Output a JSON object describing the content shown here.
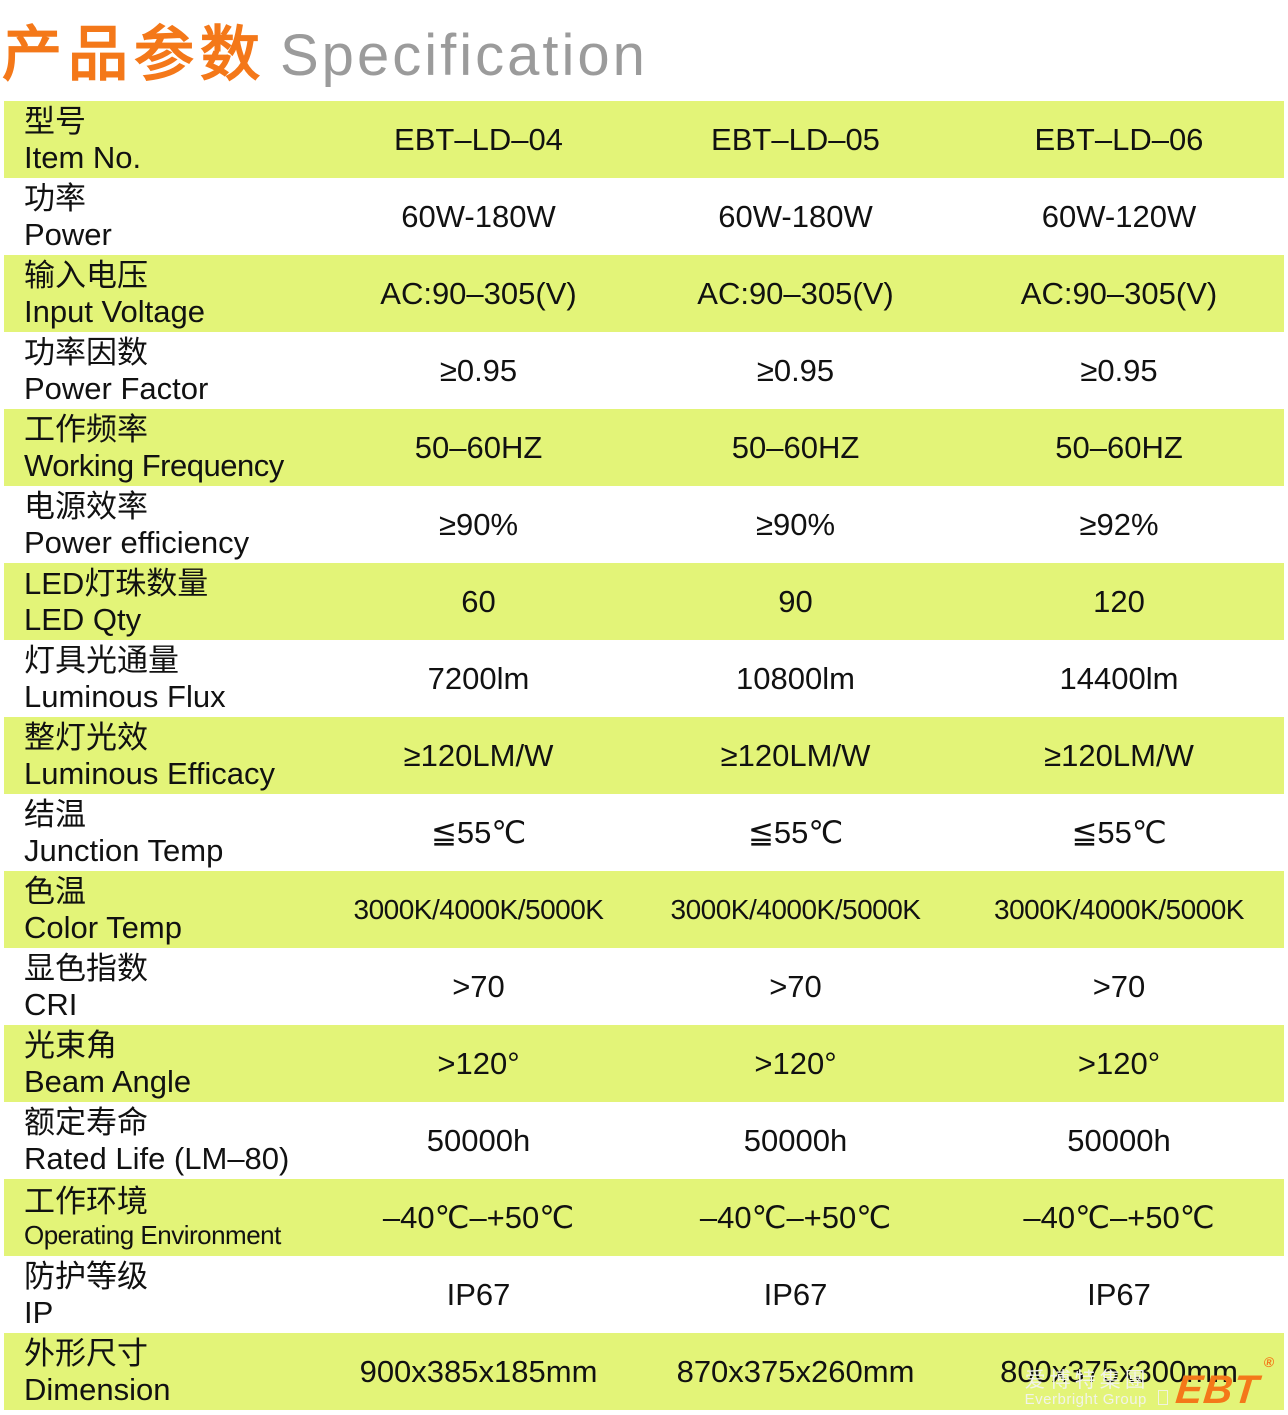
{
  "title": {
    "zh": "产品参数",
    "en": "Specification"
  },
  "table": {
    "rows": [
      {
        "label_zh": "型号",
        "label_en": "Item No.",
        "values": [
          "EBT–LD–04",
          "EBT–LD–05",
          "EBT–LD–06"
        ]
      },
      {
        "label_zh": "功率",
        "label_en": "Power",
        "values": [
          "60W-180W",
          "60W-180W",
          "60W-120W"
        ]
      },
      {
        "label_zh": "输入电压",
        "label_en": "Input Voltage",
        "values": [
          "AC:90–305(V)",
          "AC:90–305(V)",
          "AC:90–305(V)"
        ]
      },
      {
        "label_zh": "功率因数",
        "label_en": "Power Factor",
        "values": [
          "≥0.95",
          "≥0.95",
          "≥0.95"
        ]
      },
      {
        "label_zh": "工作频率",
        "label_en": "Working Frequency",
        "values": [
          "50–60HZ",
          "50–60HZ",
          "50–60HZ"
        ]
      },
      {
        "label_zh": "电源效率",
        "label_en": "Power efficiency",
        "values": [
          "≥90%",
          "≥90%",
          "≥92%"
        ]
      },
      {
        "label_zh": "LED灯珠数量",
        "label_en": "LED Qty",
        "values": [
          "60",
          "90",
          "120"
        ]
      },
      {
        "label_zh": "灯具光通量",
        "label_en": "Luminous Flux",
        "values": [
          "7200lm",
          "10800lm",
          "14400lm"
        ]
      },
      {
        "label_zh": "整灯光效",
        "label_en": "Luminous Efficacy",
        "values": [
          "≥120LM/W",
          "≥120LM/W",
          "≥120LM/W"
        ]
      },
      {
        "label_zh": "结温",
        "label_en": "Junction Temp",
        "values": [
          "≦55℃",
          "≦55℃",
          "≦55℃"
        ]
      },
      {
        "label_zh": "色温",
        "label_en": "Color Temp",
        "values": [
          "3000K/4000K/5000K",
          "3000K/4000K/5000K",
          "3000K/4000K/5000K"
        ]
      },
      {
        "label_zh": "显色指数",
        "label_en": "CRI",
        "values": [
          ">70",
          ">70",
          ">70"
        ]
      },
      {
        "label_zh": "光束角",
        "label_en": "Beam Angle",
        "values": [
          ">120°",
          ">120°",
          ">120°"
        ]
      },
      {
        "label_zh": "额定寿命",
        "label_en": "Rated Life (LM–80)",
        "values": [
          "50000h",
          "50000h",
          "50000h"
        ]
      },
      {
        "label_zh": "工作环境",
        "label_en": "Operating Environment",
        "values": [
          "–40℃–+50℃",
          "–40℃–+50℃",
          "–40℃–+50℃"
        ]
      },
      {
        "label_zh": "防护等级",
        "label_en": "IP",
        "values": [
          "IP67",
          "IP67",
          "IP67"
        ]
      },
      {
        "label_zh": "外形尺寸",
        "label_en": "Dimension",
        "values": [
          "900x385x185mm",
          "870x375x260mm",
          "800x375x300mm"
        ]
      }
    ]
  },
  "logo": {
    "group_zh": "爱博特集團",
    "group_en": "Everbright Group",
    "brand": "EBT",
    "registered": "®"
  },
  "colors": {
    "accent_orange": "#F47819",
    "row_highlight": "#E3F478",
    "title_gray": "#9B9B9B",
    "text": "#111111"
  }
}
